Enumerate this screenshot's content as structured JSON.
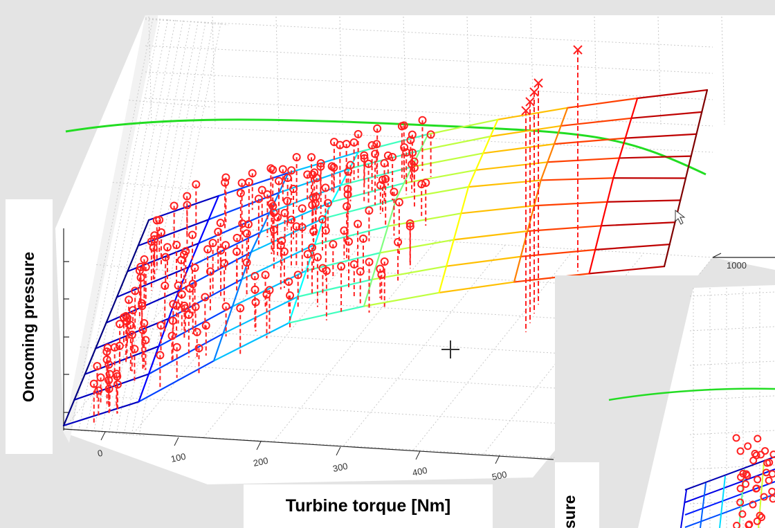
{
  "chart_data": {
    "type": "surface3d",
    "title": "",
    "xlabel": "Turbine torque [Nm]",
    "ylabel": "Oncoming pressure",
    "x_ticks": [
      "0",
      "100",
      "200",
      "300",
      "400",
      "500"
    ],
    "y_ticks": [
      "1000"
    ],
    "series": [
      {
        "name": "",
        "kind": "surface mesh",
        "colormap": "jet"
      },
      {
        "name": "",
        "kind": "measurement points",
        "marker": "o",
        "color": "#ff2020"
      },
      {
        "name": "",
        "kind": "outlier points",
        "marker": "x",
        "color": "#ff2020"
      },
      {
        "name": "",
        "kind": "boundary line",
        "color": "#22dd22"
      }
    ],
    "grid": true,
    "inset": {
      "ylabel_visible": "sure"
    }
  },
  "colors": {
    "background": "#e4e4e4",
    "axes_face": "#ffffff",
    "grid": "#c8c8c8",
    "marker": "#ff2020",
    "boundary_line": "#22dd22"
  }
}
